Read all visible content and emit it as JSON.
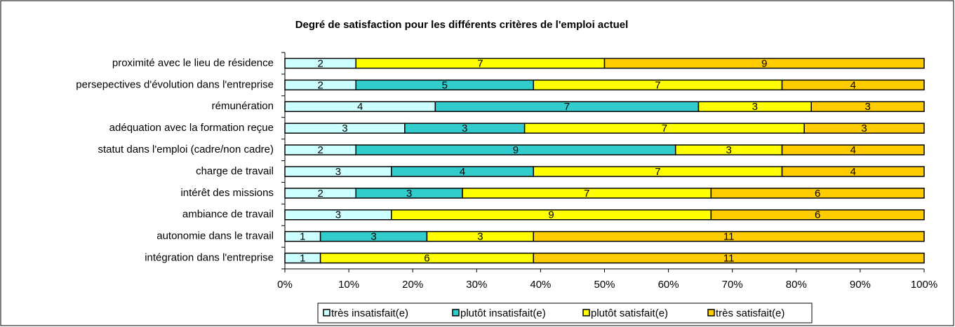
{
  "chart_data": {
    "type": "bar",
    "orientation": "horizontal",
    "stacking": "percent",
    "title": "Degré de satisfaction pour les différents critères de l'emploi actuel",
    "categories": [
      "proximité avec le lieu de résidence",
      "persepectives d'évolution dans l'entreprise",
      "rémunération",
      "adéquation avec la formation reçue",
      "statut dans l'emploi (cadre/non cadre)",
      "charge de travail",
      "intérêt des missions",
      "ambiance de travail",
      "autonomie dans le travail",
      "intégration dans l'entreprise"
    ],
    "series": [
      {
        "name": "très insatisfait(e)",
        "color": "#ccffff",
        "values": [
          2,
          2,
          4,
          3,
          2,
          3,
          2,
          3,
          1,
          1
        ]
      },
      {
        "name": "plutôt insatisfait(e)",
        "color": "#33cccc",
        "values": [
          null,
          5,
          7,
          3,
          9,
          4,
          3,
          null,
          3,
          null
        ]
      },
      {
        "name": "plutôt satisfait(e)",
        "color": "#ffff00",
        "values": [
          7,
          7,
          3,
          7,
          3,
          7,
          7,
          9,
          3,
          6
        ]
      },
      {
        "name": "très satisfait(e)",
        "color": "#ffcc00",
        "values": [
          9,
          4,
          3,
          3,
          4,
          4,
          6,
          6,
          11,
          11
        ]
      }
    ],
    "xlim": [
      0,
      100
    ],
    "xticks": [
      {
        "value": 0,
        "label": "0%"
      },
      {
        "value": 10,
        "label": "10%"
      },
      {
        "value": 20,
        "label": "20%"
      },
      {
        "value": 30,
        "label": "30%"
      },
      {
        "value": 40,
        "label": "40%"
      },
      {
        "value": 50,
        "label": "50%"
      },
      {
        "value": 60,
        "label": "60%"
      },
      {
        "value": 70,
        "label": "70%"
      },
      {
        "value": 80,
        "label": "80%"
      },
      {
        "value": 90,
        "label": "90%"
      },
      {
        "value": 100,
        "label": "100%"
      }
    ],
    "legend": "bottom"
  }
}
